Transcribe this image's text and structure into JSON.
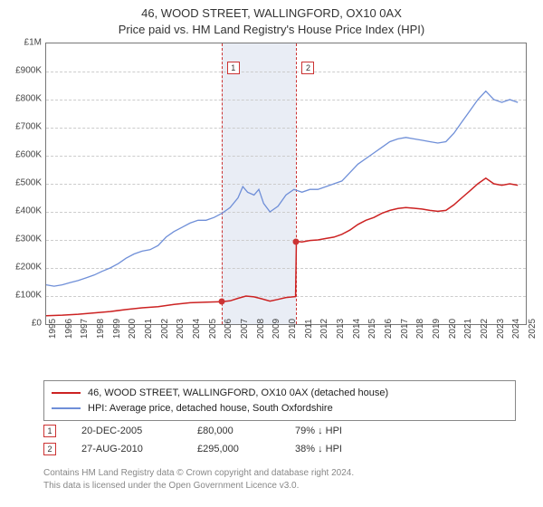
{
  "title_line1": "46, WOOD STREET, WALLINGFORD, OX10 0AX",
  "title_line2": "Price paid vs. HM Land Registry's House Price Index (HPI)",
  "chart": {
    "type": "line",
    "x_years": [
      1995,
      1996,
      1997,
      1998,
      1999,
      2000,
      2001,
      2002,
      2003,
      2004,
      2005,
      2006,
      2007,
      2008,
      2009,
      2010,
      2011,
      2012,
      2013,
      2014,
      2015,
      2016,
      2017,
      2018,
      2019,
      2020,
      2021,
      2022,
      2023,
      2024,
      2025
    ],
    "ylim": [
      0,
      1000000
    ],
    "ytick_step": 100000,
    "ytick_labels": [
      "£0",
      "£100K",
      "£200K",
      "£300K",
      "£400K",
      "£500K",
      "£600K",
      "£700K",
      "£800K",
      "£900K",
      "£1M"
    ],
    "grid_color": "#cccccc",
    "border_color": "#777777",
    "background_color": "#ffffff",
    "band_color": "#e9edf5",
    "band_start_year": 2005.97,
    "band_end_year": 2010.65,
    "dash_line_color": "#cc3333",
    "series": {
      "hpi": {
        "color": "#6f8fd8",
        "width": 1.3,
        "points": [
          [
            1995.0,
            140000
          ],
          [
            1995.5,
            135000
          ],
          [
            1996.0,
            140000
          ],
          [
            1996.5,
            148000
          ],
          [
            1997.0,
            155000
          ],
          [
            1997.5,
            165000
          ],
          [
            1998.0,
            175000
          ],
          [
            1998.5,
            188000
          ],
          [
            1999.0,
            200000
          ],
          [
            1999.5,
            215000
          ],
          [
            2000.0,
            235000
          ],
          [
            2000.5,
            250000
          ],
          [
            2001.0,
            260000
          ],
          [
            2001.5,
            265000
          ],
          [
            2002.0,
            280000
          ],
          [
            2002.5,
            310000
          ],
          [
            2003.0,
            330000
          ],
          [
            2003.5,
            345000
          ],
          [
            2004.0,
            360000
          ],
          [
            2004.5,
            370000
          ],
          [
            2005.0,
            370000
          ],
          [
            2005.5,
            380000
          ],
          [
            2006.0,
            395000
          ],
          [
            2006.5,
            415000
          ],
          [
            2007.0,
            450000
          ],
          [
            2007.3,
            490000
          ],
          [
            2007.6,
            470000
          ],
          [
            2008.0,
            460000
          ],
          [
            2008.3,
            480000
          ],
          [
            2008.6,
            430000
          ],
          [
            2009.0,
            400000
          ],
          [
            2009.5,
            420000
          ],
          [
            2010.0,
            460000
          ],
          [
            2010.5,
            480000
          ],
          [
            2011.0,
            470000
          ],
          [
            2011.5,
            480000
          ],
          [
            2012.0,
            480000
          ],
          [
            2012.5,
            490000
          ],
          [
            2013.0,
            500000
          ],
          [
            2013.5,
            510000
          ],
          [
            2014.0,
            540000
          ],
          [
            2014.5,
            570000
          ],
          [
            2015.0,
            590000
          ],
          [
            2015.5,
            610000
          ],
          [
            2016.0,
            630000
          ],
          [
            2016.5,
            650000
          ],
          [
            2017.0,
            660000
          ],
          [
            2017.5,
            665000
          ],
          [
            2018.0,
            660000
          ],
          [
            2018.5,
            655000
          ],
          [
            2019.0,
            650000
          ],
          [
            2019.5,
            645000
          ],
          [
            2020.0,
            650000
          ],
          [
            2020.5,
            680000
          ],
          [
            2021.0,
            720000
          ],
          [
            2021.5,
            760000
          ],
          [
            2022.0,
            800000
          ],
          [
            2022.5,
            830000
          ],
          [
            2023.0,
            800000
          ],
          [
            2023.5,
            790000
          ],
          [
            2024.0,
            800000
          ],
          [
            2024.5,
            790000
          ]
        ]
      },
      "price_paid": {
        "color": "#cc2222",
        "width": 1.5,
        "points": [
          [
            1995.0,
            30000
          ],
          [
            1996.0,
            32000
          ],
          [
            1997.0,
            35000
          ],
          [
            1998.0,
            40000
          ],
          [
            1999.0,
            45000
          ],
          [
            2000.0,
            52000
          ],
          [
            2001.0,
            58000
          ],
          [
            2002.0,
            62000
          ],
          [
            2003.0,
            70000
          ],
          [
            2004.0,
            76000
          ],
          [
            2005.0,
            78000
          ],
          [
            2005.97,
            80000
          ],
          [
            2006.5,
            83000
          ],
          [
            2007.0,
            92000
          ],
          [
            2007.5,
            100000
          ],
          [
            2008.0,
            97000
          ],
          [
            2008.5,
            90000
          ],
          [
            2009.0,
            82000
          ],
          [
            2009.5,
            88000
          ],
          [
            2010.0,
            95000
          ],
          [
            2010.6,
            98000
          ],
          [
            2010.65,
            295000
          ],
          [
            2011.0,
            293000
          ],
          [
            2011.5,
            298000
          ],
          [
            2012.0,
            300000
          ],
          [
            2012.5,
            305000
          ],
          [
            2013.0,
            310000
          ],
          [
            2013.5,
            320000
          ],
          [
            2014.0,
            335000
          ],
          [
            2014.5,
            355000
          ],
          [
            2015.0,
            370000
          ],
          [
            2015.5,
            380000
          ],
          [
            2016.0,
            395000
          ],
          [
            2016.5,
            405000
          ],
          [
            2017.0,
            412000
          ],
          [
            2017.5,
            415000
          ],
          [
            2018.0,
            413000
          ],
          [
            2018.5,
            410000
          ],
          [
            2019.0,
            405000
          ],
          [
            2019.5,
            402000
          ],
          [
            2020.0,
            405000
          ],
          [
            2020.5,
            425000
          ],
          [
            2021.0,
            450000
          ],
          [
            2021.5,
            475000
          ],
          [
            2022.0,
            500000
          ],
          [
            2022.5,
            520000
          ],
          [
            2023.0,
            500000
          ],
          [
            2023.5,
            495000
          ],
          [
            2024.0,
            500000
          ],
          [
            2024.5,
            495000
          ]
        ]
      }
    },
    "sale_dots": [
      {
        "year": 2005.97,
        "value": 80000
      },
      {
        "year": 2010.65,
        "value": 295000
      }
    ],
    "marker_labels": [
      "1",
      "2"
    ]
  },
  "legend": {
    "items": [
      {
        "color": "#cc2222",
        "label": "46, WOOD STREET, WALLINGFORD, OX10 0AX (detached house)"
      },
      {
        "color": "#6f8fd8",
        "label": "HPI: Average price, detached house, South Oxfordshire"
      }
    ]
  },
  "events": [
    {
      "n": "1",
      "date": "20-DEC-2005",
      "price": "£80,000",
      "hpi": "79% ↓ HPI"
    },
    {
      "n": "2",
      "date": "27-AUG-2010",
      "price": "£295,000",
      "hpi": "38% ↓ HPI"
    }
  ],
  "footer_line1": "Contains HM Land Registry data © Crown copyright and database right 2024.",
  "footer_line2": "This data is licensed under the Open Government Licence v3.0."
}
